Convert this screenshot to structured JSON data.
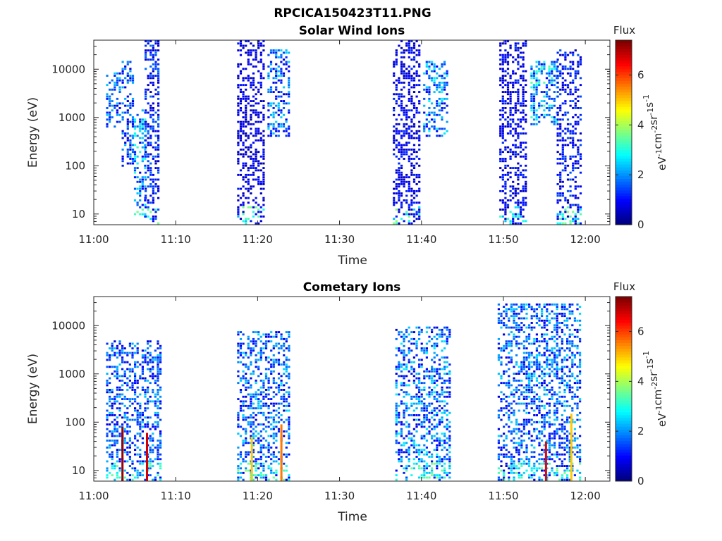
{
  "figure": {
    "title": "RPCICA150423T11.PNG"
  },
  "colorbar": {
    "label": "Flux",
    "unit_text": "eV-1cm-2sr-1s-1",
    "range": [
      0,
      7.4
    ],
    "ticks": [
      "0",
      "2",
      "4",
      "6"
    ],
    "colormap": "jet"
  },
  "chart_data": [
    {
      "type": "heatmap",
      "title": "Solar Wind Ions",
      "xlabel": "Time",
      "ylabel": "Energy (eV)",
      "x_ticks": [
        "11:00",
        "11:10",
        "11:20",
        "11:30",
        "11:40",
        "11:50",
        "12:00"
      ],
      "y_ticks": [
        "10",
        "100",
        "1000",
        "10000"
      ],
      "y_scale": "log",
      "xlim_minutes": [
        0,
        63
      ],
      "ylim_eV": [
        6,
        40000
      ],
      "bursts": [
        {
          "start_min": 1.5,
          "end_min": 3.3,
          "emin": 600,
          "emax": 9000,
          "flux": 1.6
        },
        {
          "start_min": 3.4,
          "end_min": 4.9,
          "emin": 90,
          "emax": 15000,
          "flux": 1.4
        },
        {
          "start_min": 4.9,
          "end_min": 6.3,
          "emin": 8,
          "emax": 1500,
          "flux": 2.0
        },
        {
          "start_min": 6.2,
          "end_min": 8.0,
          "emin": 6,
          "emax": 40000,
          "flux": 1.1
        },
        {
          "start_min": 17.5,
          "end_min": 20.7,
          "emin": 6,
          "emax": 40000,
          "flux": 0.7
        },
        {
          "start_min": 21.2,
          "end_min": 23.8,
          "emin": 400,
          "emax": 25000,
          "flux": 1.6
        },
        {
          "start_min": 36.5,
          "end_min": 39.8,
          "emin": 6,
          "emax": 40000,
          "flux": 0.8
        },
        {
          "start_min": 40.2,
          "end_min": 43.2,
          "emin": 400,
          "emax": 15000,
          "flux": 1.8
        },
        {
          "start_min": 49.5,
          "end_min": 52.7,
          "emin": 6,
          "emax": 40000,
          "flux": 0.8
        },
        {
          "start_min": 53.3,
          "end_min": 56.5,
          "emin": 700,
          "emax": 15000,
          "flux": 2.2
        },
        {
          "start_min": 56.5,
          "end_min": 59.5,
          "emin": 6,
          "emax": 25000,
          "flux": 1.0
        }
      ]
    },
    {
      "type": "heatmap",
      "title": "Cometary Ions",
      "xlabel": "Time",
      "ylabel": "Energy (eV)",
      "x_ticks": [
        "11:00",
        "11:10",
        "11:20",
        "11:30",
        "11:40",
        "11:50",
        "12:00"
      ],
      "y_ticks": [
        "10",
        "100",
        "1000",
        "10000"
      ],
      "y_scale": "log",
      "xlim_minutes": [
        0,
        63
      ],
      "ylim_eV": [
        6,
        40000
      ],
      "bursts": [
        {
          "start_min": 1.5,
          "end_min": 8.3,
          "emin": 6,
          "emax": 5000,
          "flux": 1.5
        },
        {
          "start_min": 17.5,
          "end_min": 24.0,
          "emin": 6,
          "emax": 8000,
          "flux": 1.6
        },
        {
          "start_min": 36.8,
          "end_min": 43.5,
          "emin": 6,
          "emax": 10000,
          "flux": 1.7
        },
        {
          "start_min": 49.3,
          "end_min": 59.5,
          "emin": 6,
          "emax": 30000,
          "flux": 1.6
        }
      ],
      "spikes": [
        {
          "time_min": 3.5,
          "emin": 6,
          "emax": 80,
          "flux": 7.2
        },
        {
          "time_min": 6.5,
          "emin": 6,
          "emax": 60,
          "flux": 6.8
        },
        {
          "time_min": 19.3,
          "emin": 6,
          "emax": 50,
          "flux": 5.0
        },
        {
          "time_min": 22.9,
          "emin": 6,
          "emax": 90,
          "flux": 5.6
        },
        {
          "time_min": 55.2,
          "emin": 6,
          "emax": 40,
          "flux": 6.6
        },
        {
          "time_min": 58.3,
          "emin": 6,
          "emax": 150,
          "flux": 5.0
        }
      ]
    }
  ]
}
